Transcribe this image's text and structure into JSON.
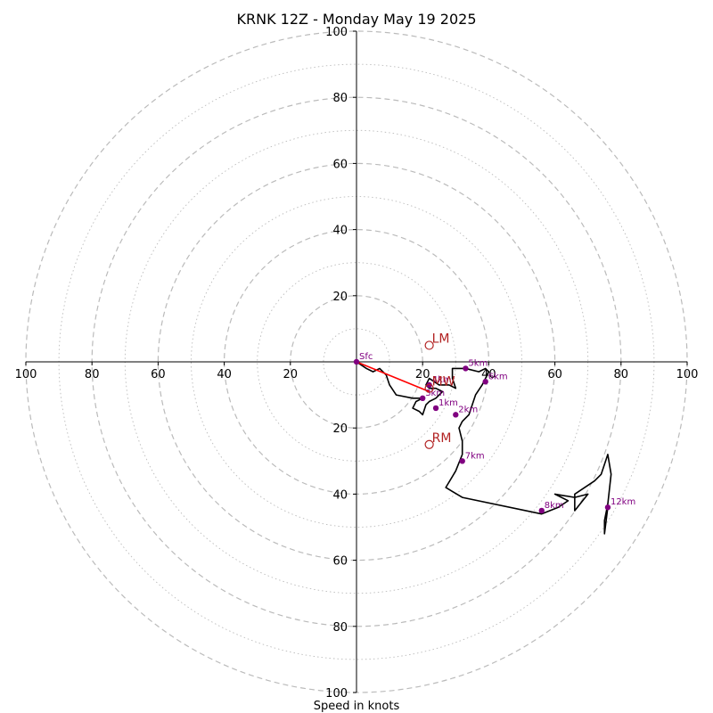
{
  "chart_data": {
    "type": "hodograph",
    "title": "KRNK 12Z - Monday May 19 2025",
    "xlabel": "Speed in knots",
    "range": [
      -100,
      100
    ],
    "ring_step_major": 20,
    "ring_step_minor": 10,
    "tick_values": [
      20,
      40,
      60,
      80,
      100
    ],
    "hodograph_trace": [
      [
        0,
        0
      ],
      [
        3,
        -2
      ],
      [
        5,
        -3
      ],
      [
        7,
        -2
      ],
      [
        9,
        -4
      ],
      [
        10,
        -7
      ],
      [
        12,
        -10
      ],
      [
        17,
        -11
      ],
      [
        20,
        -11
      ],
      [
        18,
        -12
      ],
      [
        17,
        -14
      ],
      [
        19,
        -15
      ],
      [
        20,
        -16
      ],
      [
        21,
        -13
      ],
      [
        22,
        -12
      ],
      [
        24,
        -11
      ],
      [
        26,
        -9
      ],
      [
        24,
        -8
      ],
      [
        22,
        -8
      ],
      [
        21,
        -7
      ],
      [
        22,
        -5
      ],
      [
        25,
        -7
      ],
      [
        28,
        -7
      ],
      [
        30,
        -8
      ],
      [
        29,
        -5
      ],
      [
        29,
        -2
      ],
      [
        33,
        -2
      ],
      [
        37,
        -3
      ],
      [
        39,
        -2
      ],
      [
        40,
        -3
      ],
      [
        39,
        -5
      ],
      [
        38,
        -7
      ],
      [
        36,
        -10
      ],
      [
        35,
        -13
      ],
      [
        34,
        -16
      ],
      [
        32,
        -18
      ],
      [
        31,
        -20
      ],
      [
        32,
        -24
      ],
      [
        32,
        -28
      ],
      [
        30,
        -33
      ],
      [
        27,
        -38
      ],
      [
        32,
        -41
      ],
      [
        56,
        -46
      ],
      [
        61,
        -44
      ],
      [
        64,
        -42
      ],
      [
        60,
        -40
      ],
      [
        66,
        -41
      ],
      [
        70,
        -40
      ],
      [
        66,
        -45
      ],
      [
        66,
        -40
      ],
      [
        72,
        -36
      ],
      [
        74,
        -34
      ],
      [
        75,
        -31
      ],
      [
        76,
        -28
      ],
      [
        77,
        -34
      ],
      [
        76,
        -43
      ],
      [
        75,
        -48
      ],
      [
        75,
        -52
      ],
      [
        76,
        -44
      ]
    ],
    "storm_motion_line": [
      [
        0,
        0
      ],
      [
        22,
        -9
      ]
    ],
    "height_markers": [
      {
        "label": "Sfc",
        "u": 0,
        "v": 0
      },
      {
        "label": "1km",
        "u": 24,
        "v": -14
      },
      {
        "label": "2km",
        "u": 30,
        "v": -16
      },
      {
        "label": "3km",
        "u": 20,
        "v": -11
      },
      {
        "label": "4km",
        "u": 22,
        "v": -7
      },
      {
        "label": "5km",
        "u": 33,
        "v": -2
      },
      {
        "label": "6km",
        "u": 39,
        "v": -6
      },
      {
        "label": "7km",
        "u": 32,
        "v": -30
      },
      {
        "label": "8km",
        "u": 56,
        "v": -45
      },
      {
        "label": "12km",
        "u": 76,
        "v": -44
      }
    ],
    "motion_markers": [
      {
        "label": "LM",
        "u": 22,
        "v": 5
      },
      {
        "label": "RM",
        "u": 22,
        "v": -25
      },
      {
        "label": "MW",
        "u": 22,
        "v": -8
      }
    ],
    "colors": {
      "trace": "#000000",
      "storm_motion": "#ff0000",
      "markers": "#800080",
      "motion": "#b22222",
      "grid": "#bbbbbb"
    }
  }
}
